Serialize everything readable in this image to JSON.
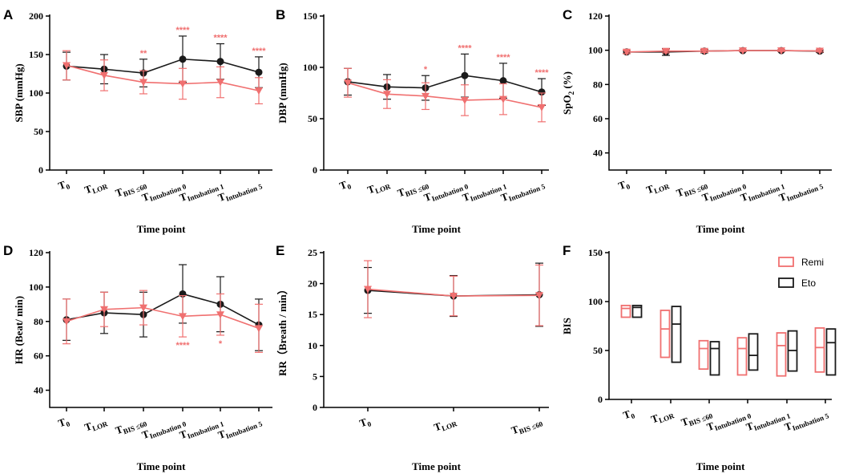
{
  "colors": {
    "remi": "#f07070",
    "eto": "#1a1a1a"
  },
  "legend": [
    {
      "name": "Remi",
      "color": "#f07070"
    },
    {
      "name": "Eto",
      "color": "#1a1a1a"
    }
  ],
  "chart_data": [
    {
      "panel": "A",
      "type": "line",
      "ylabel": "SBP (mmHg)",
      "xlabel": "Time point",
      "ylim": [
        0,
        200
      ],
      "yticks": [
        0,
        50,
        100,
        150,
        200
      ],
      "categories": [
        {
          "main": "T",
          "sub": "0"
        },
        {
          "main": "T",
          "sub": "LOR"
        },
        {
          "main": "T",
          "sub": "BIS ≤60"
        },
        {
          "main": "T",
          "sub": "Intubation 0"
        },
        {
          "main": "T",
          "sub": "Intubation 1"
        },
        {
          "main": "T",
          "sub": "Intubation 5"
        }
      ],
      "series": [
        {
          "name": "Eto",
          "values": [
            135,
            131,
            126,
            144,
            141,
            127
          ],
          "err": [
            18,
            19,
            18,
            30,
            23,
            20
          ]
        },
        {
          "name": "Remi",
          "values": [
            136,
            123,
            114,
            112,
            114,
            103
          ],
          "err": [
            19,
            20,
            15,
            20,
            20,
            17
          ]
        }
      ],
      "annotations": [
        "",
        "",
        "**",
        "****",
        "****",
        "****"
      ]
    },
    {
      "panel": "B",
      "type": "line",
      "ylabel": "DBP (mmHg)",
      "xlabel": "Time point",
      "ylim": [
        0,
        150
      ],
      "yticks": [
        0,
        50,
        100,
        150
      ],
      "categories": [
        {
          "main": "T",
          "sub": "0"
        },
        {
          "main": "T",
          "sub": "LOR"
        },
        {
          "main": "T",
          "sub": "BIS ≤60"
        },
        {
          "main": "T",
          "sub": "Intubation 0"
        },
        {
          "main": "T",
          "sub": "Intubation 1"
        },
        {
          "main": "T",
          "sub": "Intubation 5"
        }
      ],
      "series": [
        {
          "name": "Eto",
          "values": [
            86,
            81,
            80,
            92,
            87,
            76
          ],
          "err": [
            13,
            12,
            12,
            21,
            17,
            13
          ]
        },
        {
          "name": "Remi",
          "values": [
            85,
            74,
            72,
            68,
            69,
            61
          ],
          "err": [
            14,
            14,
            13,
            15,
            15,
            14
          ]
        }
      ],
      "annotations": [
        "",
        "",
        "*",
        "****",
        "****",
        "****"
      ]
    },
    {
      "panel": "C",
      "type": "line",
      "ylabel": "SpO",
      "ylabel_sub": "2",
      "ylabel_tail": " (%)",
      "xlabel": "Time point",
      "ylim": [
        30,
        120
      ],
      "yticks": [
        40,
        60,
        80,
        100,
        120
      ],
      "categories": [
        {
          "main": "T",
          "sub": "0"
        },
        {
          "main": "T",
          "sub": "LOR"
        },
        {
          "main": "T",
          "sub": "BIS ≤60"
        },
        {
          "main": "T",
          "sub": "Intubation 0"
        },
        {
          "main": "T",
          "sub": "Intubation 1"
        },
        {
          "main": "T",
          "sub": "Intubation 5"
        }
      ],
      "series": [
        {
          "name": "Eto",
          "values": [
            99,
            99,
            99.5,
            99.8,
            99.8,
            99.5
          ],
          "err": [
            1,
            2,
            1,
            0.5,
            0.5,
            0.8
          ]
        },
        {
          "name": "Remi",
          "values": [
            99,
            99.5,
            99.5,
            99.8,
            99.8,
            99.6
          ],
          "err": [
            1,
            1,
            0.8,
            0.5,
            0.5,
            0.6
          ]
        }
      ],
      "annotations": [
        "",
        "",
        "",
        "",
        "",
        ""
      ]
    },
    {
      "panel": "D",
      "type": "line",
      "ylabel": "HR (Beat/ min)",
      "xlabel": "Time point",
      "ylim": [
        30,
        120
      ],
      "yticks": [
        40,
        60,
        80,
        100,
        120
      ],
      "categories": [
        {
          "main": "T",
          "sub": "0"
        },
        {
          "main": "T",
          "sub": "LOR"
        },
        {
          "main": "T",
          "sub": "BIS ≤60"
        },
        {
          "main": "T",
          "sub": "Intubation 0"
        },
        {
          "main": "T",
          "sub": "Intubation 1"
        },
        {
          "main": "T",
          "sub": "Intubation 5"
        }
      ],
      "series": [
        {
          "name": "Eto",
          "values": [
            81,
            85,
            84,
            96,
            90,
            78
          ],
          "err": [
            12,
            12,
            13,
            17,
            16,
            15
          ]
        },
        {
          "name": "Remi",
          "values": [
            80,
            87,
            88,
            83,
            84,
            76
          ],
          "err": [
            13,
            10,
            10,
            12,
            12,
            14
          ]
        }
      ],
      "annotations": [
        "",
        "",
        "",
        "****",
        "*",
        ""
      ],
      "annotation_position": "below"
    },
    {
      "panel": "E",
      "type": "line",
      "ylabel": "RR（Breath / min）",
      "xlabel": "Time point",
      "ylim": [
        0,
        25
      ],
      "yticks": [
        0,
        5,
        10,
        15,
        20,
        25
      ],
      "categories": [
        {
          "main": "T",
          "sub": "0"
        },
        {
          "main": "T",
          "sub": "LOR"
        },
        {
          "main": "T",
          "sub": "BIS ≤60"
        }
      ],
      "series": [
        {
          "name": "Eto",
          "values": [
            18.9,
            18.0,
            18.2
          ],
          "err": [
            3.7,
            3.3,
            5.1
          ]
        },
        {
          "name": "Remi",
          "values": [
            19.1,
            18.0,
            18.1
          ],
          "err": [
            4.6,
            3.2,
            4.9
          ]
        }
      ],
      "annotations": [
        "",
        "",
        ""
      ]
    },
    {
      "panel": "F",
      "type": "floating-bar",
      "ylabel": "BIS",
      "xlabel": "Time point",
      "ylim": [
        0,
        150
      ],
      "yticks": [
        0,
        50,
        100,
        150
      ],
      "categories": [
        {
          "main": "T",
          "sub": "0"
        },
        {
          "main": "T",
          "sub": "LOR"
        },
        {
          "main": "T",
          "sub": "BIS ≤60"
        },
        {
          "main": "T",
          "sub": "Intubation 0"
        },
        {
          "main": "T",
          "sub": "Intubation 1"
        },
        {
          "main": "T",
          "sub": "Intubation 5"
        }
      ],
      "series": [
        {
          "name": "Remi",
          "min": [
            84,
            43,
            31,
            25,
            24,
            28
          ],
          "max": [
            96,
            91,
            60,
            63,
            68,
            73
          ],
          "mid": [
            93,
            72,
            52,
            52,
            55,
            53
          ]
        },
        {
          "name": "Eto",
          "min": [
            84,
            38,
            25,
            30,
            29,
            25
          ],
          "max": [
            96,
            95,
            59,
            67,
            70,
            72
          ],
          "mid": [
            94,
            77,
            52,
            45,
            50,
            58
          ]
        }
      ]
    }
  ]
}
